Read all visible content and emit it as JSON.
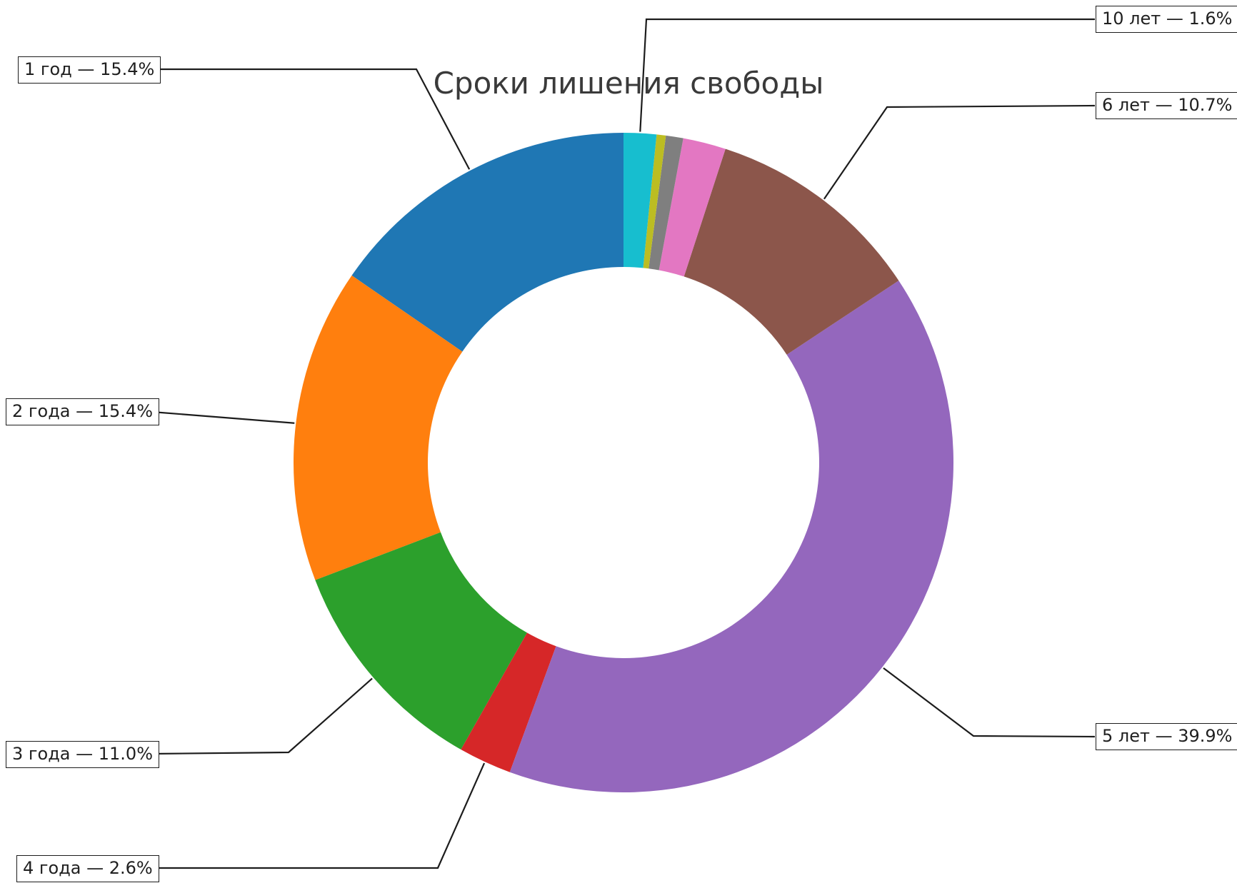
{
  "title": "Сроки лишения свободы",
  "chart_data": {
    "type": "pie",
    "donut": true,
    "title": "Сроки лишения свободы",
    "title_color": "#3a3a3a",
    "start_angle": 90,
    "direction": "counterclockwise",
    "hole_ratio": 0.593,
    "legend": "none",
    "annotation_line_color": "#1c1c1c",
    "slices": [
      {
        "label": "1 год",
        "value": 15.4,
        "color": "#1f77b4",
        "annotation": "1 год — 15.4%"
      },
      {
        "label": "2 года",
        "value": 15.4,
        "color": "#ff7f0e",
        "annotation": "2 года — 15.4%"
      },
      {
        "label": "3 года",
        "value": 11.0,
        "color": "#2ca02c",
        "annotation": "3 года — 11.0%"
      },
      {
        "label": "4 года",
        "value": 2.6,
        "color": "#d62728",
        "annotation": "4 года — 2.6%"
      },
      {
        "label": "5 лет",
        "value": 39.9,
        "color": "#9467bd",
        "annotation": "5 лет — 39.9%"
      },
      {
        "label": "6 лет",
        "value": 10.7,
        "color": "#8c564b",
        "annotation": "6 лет — 10.7%"
      },
      {
        "label": "",
        "value": 2.1,
        "color": "#e377c2",
        "annotation": ""
      },
      {
        "label": "",
        "value": 0.85,
        "color": "#7f7f7f",
        "annotation": ""
      },
      {
        "label": "",
        "value": 0.45,
        "color": "#bcbd22",
        "annotation": ""
      },
      {
        "label": "10 лет",
        "value": 1.6,
        "color": "#17becf",
        "annotation": "10 лет — 1.6%"
      }
    ]
  }
}
